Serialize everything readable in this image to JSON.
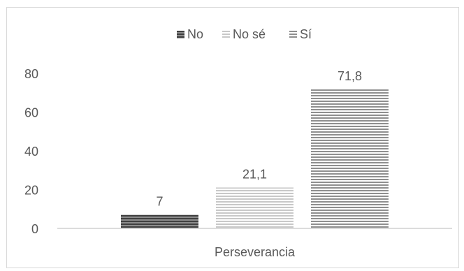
{
  "chart_data": {
    "type": "bar",
    "title": "",
    "categories": [
      "Perseverancia"
    ],
    "xlabel": "",
    "ylabel": "",
    "ylim": [
      0,
      80
    ],
    "yticks": [
      0,
      20,
      40,
      60,
      80
    ],
    "grid": false,
    "legend": "top",
    "series": [
      {
        "name": "No",
        "values": [
          7
        ],
        "label": "7",
        "color": "#595959"
      },
      {
        "name": "No sé",
        "values": [
          21.1
        ],
        "label": "21,1",
        "color": "#d0d0d0"
      },
      {
        "name": "Sí",
        "values": [
          71.8
        ],
        "label": "71,8",
        "color": "#9a9a9a"
      }
    ]
  }
}
